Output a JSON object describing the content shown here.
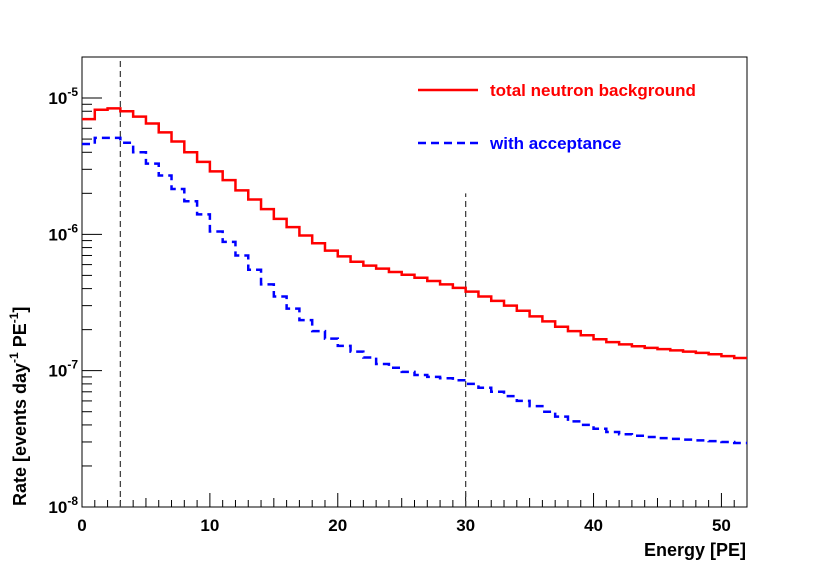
{
  "chart_data": {
    "type": "line",
    "title": "",
    "xlabel": "Energy [PE]",
    "ylabel": "Rate [events day⁻¹ PE⁻¹]",
    "ylabel_parts": {
      "a": "Rate [events day",
      "b": "-1",
      "c": " PE",
      "d": "-1",
      "e": "]"
    },
    "xlim": [
      0,
      52
    ],
    "ylim": [
      1e-08,
      2e-05
    ],
    "yscale": "log",
    "xticks": [
      0,
      10,
      20,
      30,
      40,
      50
    ],
    "xtick_labels": [
      "0",
      "10",
      "20",
      "30",
      "40",
      "50"
    ],
    "yticks": [
      1e-08,
      1e-07,
      1e-06,
      1e-05
    ],
    "ytick_labels": [
      {
        "base": "10",
        "exp": "-8"
      },
      {
        "base": "10",
        "exp": "-7"
      },
      {
        "base": "10",
        "exp": "-6"
      },
      {
        "base": "10",
        "exp": "-5"
      }
    ],
    "vlines": [
      3,
      30
    ],
    "bin_edges": [
      0,
      1,
      2,
      3,
      4,
      5,
      6,
      7,
      8,
      9,
      10,
      11,
      12,
      13,
      14,
      15,
      16,
      17,
      18,
      19,
      20,
      21,
      22,
      23,
      24,
      25,
      26,
      27,
      28,
      29,
      30,
      31,
      32,
      33,
      34,
      35,
      36,
      37,
      38,
      39,
      40,
      41,
      42,
      43,
      44,
      45,
      46,
      47,
      48,
      49,
      50,
      51,
      52
    ],
    "series": [
      {
        "name": "total neutron background",
        "color": "#ff0000",
        "style": "solid",
        "values": [
          7e-06,
          8.2e-06,
          8.4e-06,
          8e-06,
          7.3e-06,
          6.5e-06,
          5.6e-06,
          4.8e-06,
          4e-06,
          3.4e-06,
          2.9e-06,
          2.5e-06,
          2.1e-06,
          1.8e-06,
          1.53e-06,
          1.3e-06,
          1.13e-06,
          9.8e-07,
          8.6e-07,
          7.6e-07,
          6.9e-07,
          6.3e-07,
          5.9e-07,
          5.6e-07,
          5.3e-07,
          5.05e-07,
          4.8e-07,
          4.55e-07,
          4.3e-07,
          4.05e-07,
          3.8e-07,
          3.5e-07,
          3.25e-07,
          3e-07,
          2.75e-07,
          2.5e-07,
          2.3e-07,
          2.1e-07,
          1.95e-07,
          1.82e-07,
          1.7e-07,
          1.62e-07,
          1.56e-07,
          1.51e-07,
          1.47e-07,
          1.44e-07,
          1.41e-07,
          1.38e-07,
          1.35e-07,
          1.32e-07,
          1.28e-07,
          1.24e-07
        ]
      },
      {
        "name": "with acceptance",
        "color": "#0000ff",
        "style": "dashed",
        "values": [
          4.6e-06,
          5.1e-06,
          5.1e-06,
          4.7e-06,
          4e-06,
          3.3e-06,
          2.7e-06,
          2.15e-06,
          1.75e-06,
          1.4e-06,
          1.05e-06,
          8.8e-07,
          7e-07,
          5.5e-07,
          4.3e-07,
          3.5e-07,
          2.85e-07,
          2.35e-07,
          1.95e-07,
          1.72e-07,
          1.52e-07,
          1.38e-07,
          1.25e-07,
          1.12e-07,
          1.05e-07,
          9.8e-08,
          9.3e-08,
          9e-08,
          8.8e-08,
          8.5e-08,
          8e-08,
          7.5e-08,
          7e-08,
          6.5e-08,
          6e-08,
          5.5e-08,
          5e-08,
          4.6e-08,
          4.25e-08,
          4e-08,
          3.75e-08,
          3.55e-08,
          3.42e-08,
          3.33e-08,
          3.26e-08,
          3.2e-08,
          3.16e-08,
          3.12e-08,
          3.08e-08,
          3.04e-08,
          3e-08,
          2.95e-08
        ]
      }
    ],
    "legend": {
      "position": "top-right",
      "entries": [
        "total neutron background",
        "with acceptance"
      ]
    }
  }
}
